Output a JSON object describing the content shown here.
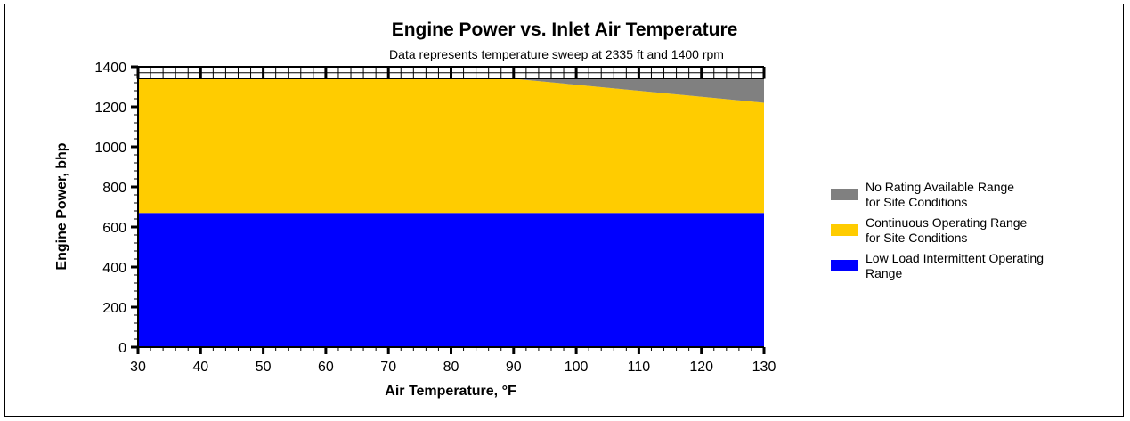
{
  "chart_data": {
    "type": "area",
    "title": "Engine Power vs. Inlet Air Temperature",
    "subtitle": "Data represents temperature sweep at 2335 ft and 1400 rpm",
    "xlabel": "Air Temperature, °F",
    "ylabel": "Engine Power, bhp",
    "xlim": [
      30,
      130
    ],
    "ylim": [
      0,
      1400
    ],
    "x_ticks": [
      30,
      40,
      50,
      60,
      70,
      80,
      90,
      100,
      110,
      120,
      130
    ],
    "y_ticks": [
      0,
      200,
      400,
      600,
      800,
      1000,
      1200,
      1400
    ],
    "grid": false,
    "legend_position": "right",
    "x": [
      30,
      90,
      130
    ],
    "series": [
      {
        "name": "Low Load Intermittent Operating Range",
        "legend_lines": [
          "Low Load Intermittent Operating",
          "Range"
        ],
        "color": "#0000FF",
        "lower": [
          0,
          0,
          0
        ],
        "upper": [
          670,
          670,
          670
        ]
      },
      {
        "name": "Continuous Operating Range for Site Conditions",
        "legend_lines": [
          "Continuous Operating Range",
          "for Site Conditions"
        ],
        "color": "#FFCC00",
        "lower": [
          670,
          670,
          670
        ],
        "upper": [
          1340,
          1340,
          1220
        ]
      },
      {
        "name": "No Rating Available Range for Site Conditions",
        "legend_lines": [
          "No Rating Available Range",
          "for Site Conditions"
        ],
        "color": "#808080",
        "lower": [
          1340,
          1340,
          1220
        ],
        "upper": [
          1340,
          1340,
          1340
        ]
      }
    ],
    "legend_order": [
      2,
      1,
      0
    ]
  }
}
